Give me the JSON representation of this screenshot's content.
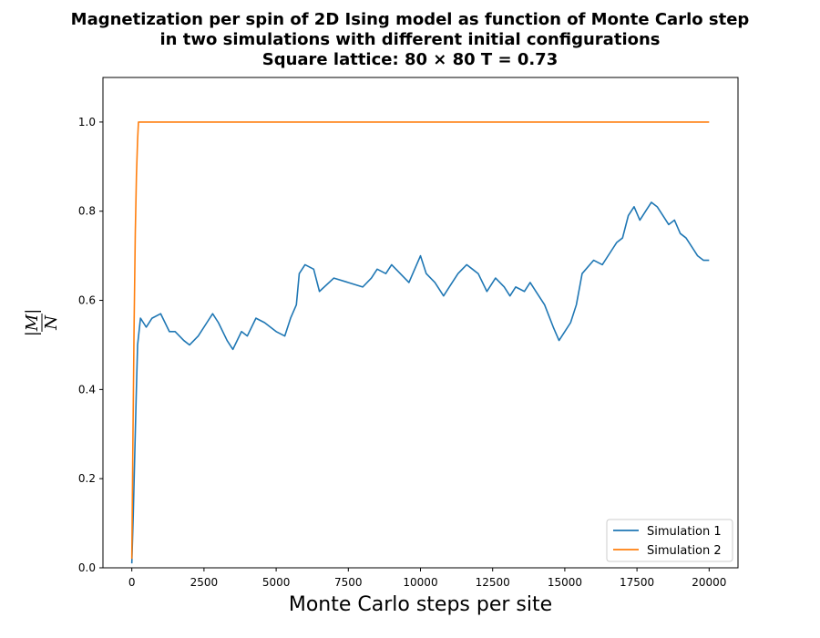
{
  "chart_data": {
    "type": "line",
    "title": {
      "line1": "Magnetization per spin of 2D Ising model as function of Monte Carlo step",
      "line2": "in two simulations with different initial configurations",
      "line3": "Square lattice: 80 × 80   T = 0.73"
    },
    "xlabel": "Monte Carlo steps per site",
    "ylabel": {
      "num": "|M|",
      "den": "N"
    },
    "xlim": [
      -1000,
      21000
    ],
    "ylim": [
      0.0,
      1.1
    ],
    "xticks": [
      0,
      2500,
      5000,
      7500,
      10000,
      12500,
      15000,
      17500,
      20000
    ],
    "yticks": [
      0.0,
      0.2,
      0.4,
      0.6,
      0.8,
      1.0
    ],
    "ytick_labels": [
      "0.0",
      "0.2",
      "0.4",
      "0.6",
      "0.8",
      "1.0"
    ],
    "legend_position": "lower-right",
    "colors": {
      "sim1": "#1f77b4",
      "sim2": "#ff7f0e"
    },
    "series": [
      {
        "name": "Simulation 1",
        "color": "#1f77b4",
        "x": [
          0,
          50,
          100,
          150,
          200,
          300,
          400,
          500,
          700,
          1000,
          1300,
          1500,
          1800,
          2000,
          2300,
          2600,
          2800,
          3000,
          3300,
          3500,
          3800,
          4000,
          4300,
          4600,
          5000,
          5300,
          5500,
          5700,
          5800,
          6000,
          6300,
          6500,
          7000,
          7500,
          8000,
          8300,
          8500,
          8800,
          9000,
          9300,
          9600,
          9800,
          10000,
          10200,
          10500,
          10800,
          11000,
          11300,
          11600,
          11800,
          12000,
          12300,
          12600,
          12900,
          13100,
          13300,
          13600,
          13800,
          14000,
          14300,
          14600,
          14800,
          15000,
          15200,
          15400,
          15600,
          16000,
          16300,
          16600,
          16800,
          17000,
          17200,
          17400,
          17600,
          17800,
          18000,
          18200,
          18400,
          18600,
          18800,
          19000,
          19200,
          19400,
          19600,
          19800,
          20000
        ],
        "y": [
          0.01,
          0.12,
          0.25,
          0.38,
          0.5,
          0.56,
          0.55,
          0.54,
          0.56,
          0.57,
          0.53,
          0.53,
          0.51,
          0.5,
          0.52,
          0.55,
          0.57,
          0.55,
          0.51,
          0.49,
          0.53,
          0.52,
          0.56,
          0.55,
          0.53,
          0.52,
          0.56,
          0.59,
          0.66,
          0.68,
          0.67,
          0.62,
          0.65,
          0.64,
          0.63,
          0.65,
          0.67,
          0.66,
          0.68,
          0.66,
          0.64,
          0.67,
          0.7,
          0.66,
          0.64,
          0.61,
          0.63,
          0.66,
          0.68,
          0.67,
          0.66,
          0.62,
          0.65,
          0.63,
          0.61,
          0.63,
          0.62,
          0.64,
          0.62,
          0.59,
          0.54,
          0.51,
          0.53,
          0.55,
          0.59,
          0.66,
          0.69,
          0.68,
          0.71,
          0.73,
          0.74,
          0.79,
          0.81,
          0.78,
          0.8,
          0.82,
          0.81,
          0.79,
          0.77,
          0.78,
          0.75,
          0.74,
          0.72,
          0.7,
          0.69,
          0.69
        ]
      },
      {
        "name": "Simulation 2",
        "color": "#ff7f0e",
        "x": [
          0,
          40,
          80,
          120,
          160,
          200,
          230,
          260,
          400,
          1000,
          5000,
          10000,
          15000,
          20000
        ],
        "y": [
          0.02,
          0.3,
          0.55,
          0.75,
          0.88,
          0.96,
          1.0,
          1.0,
          1.0,
          1.0,
          1.0,
          1.0,
          1.0,
          1.0
        ]
      }
    ]
  }
}
